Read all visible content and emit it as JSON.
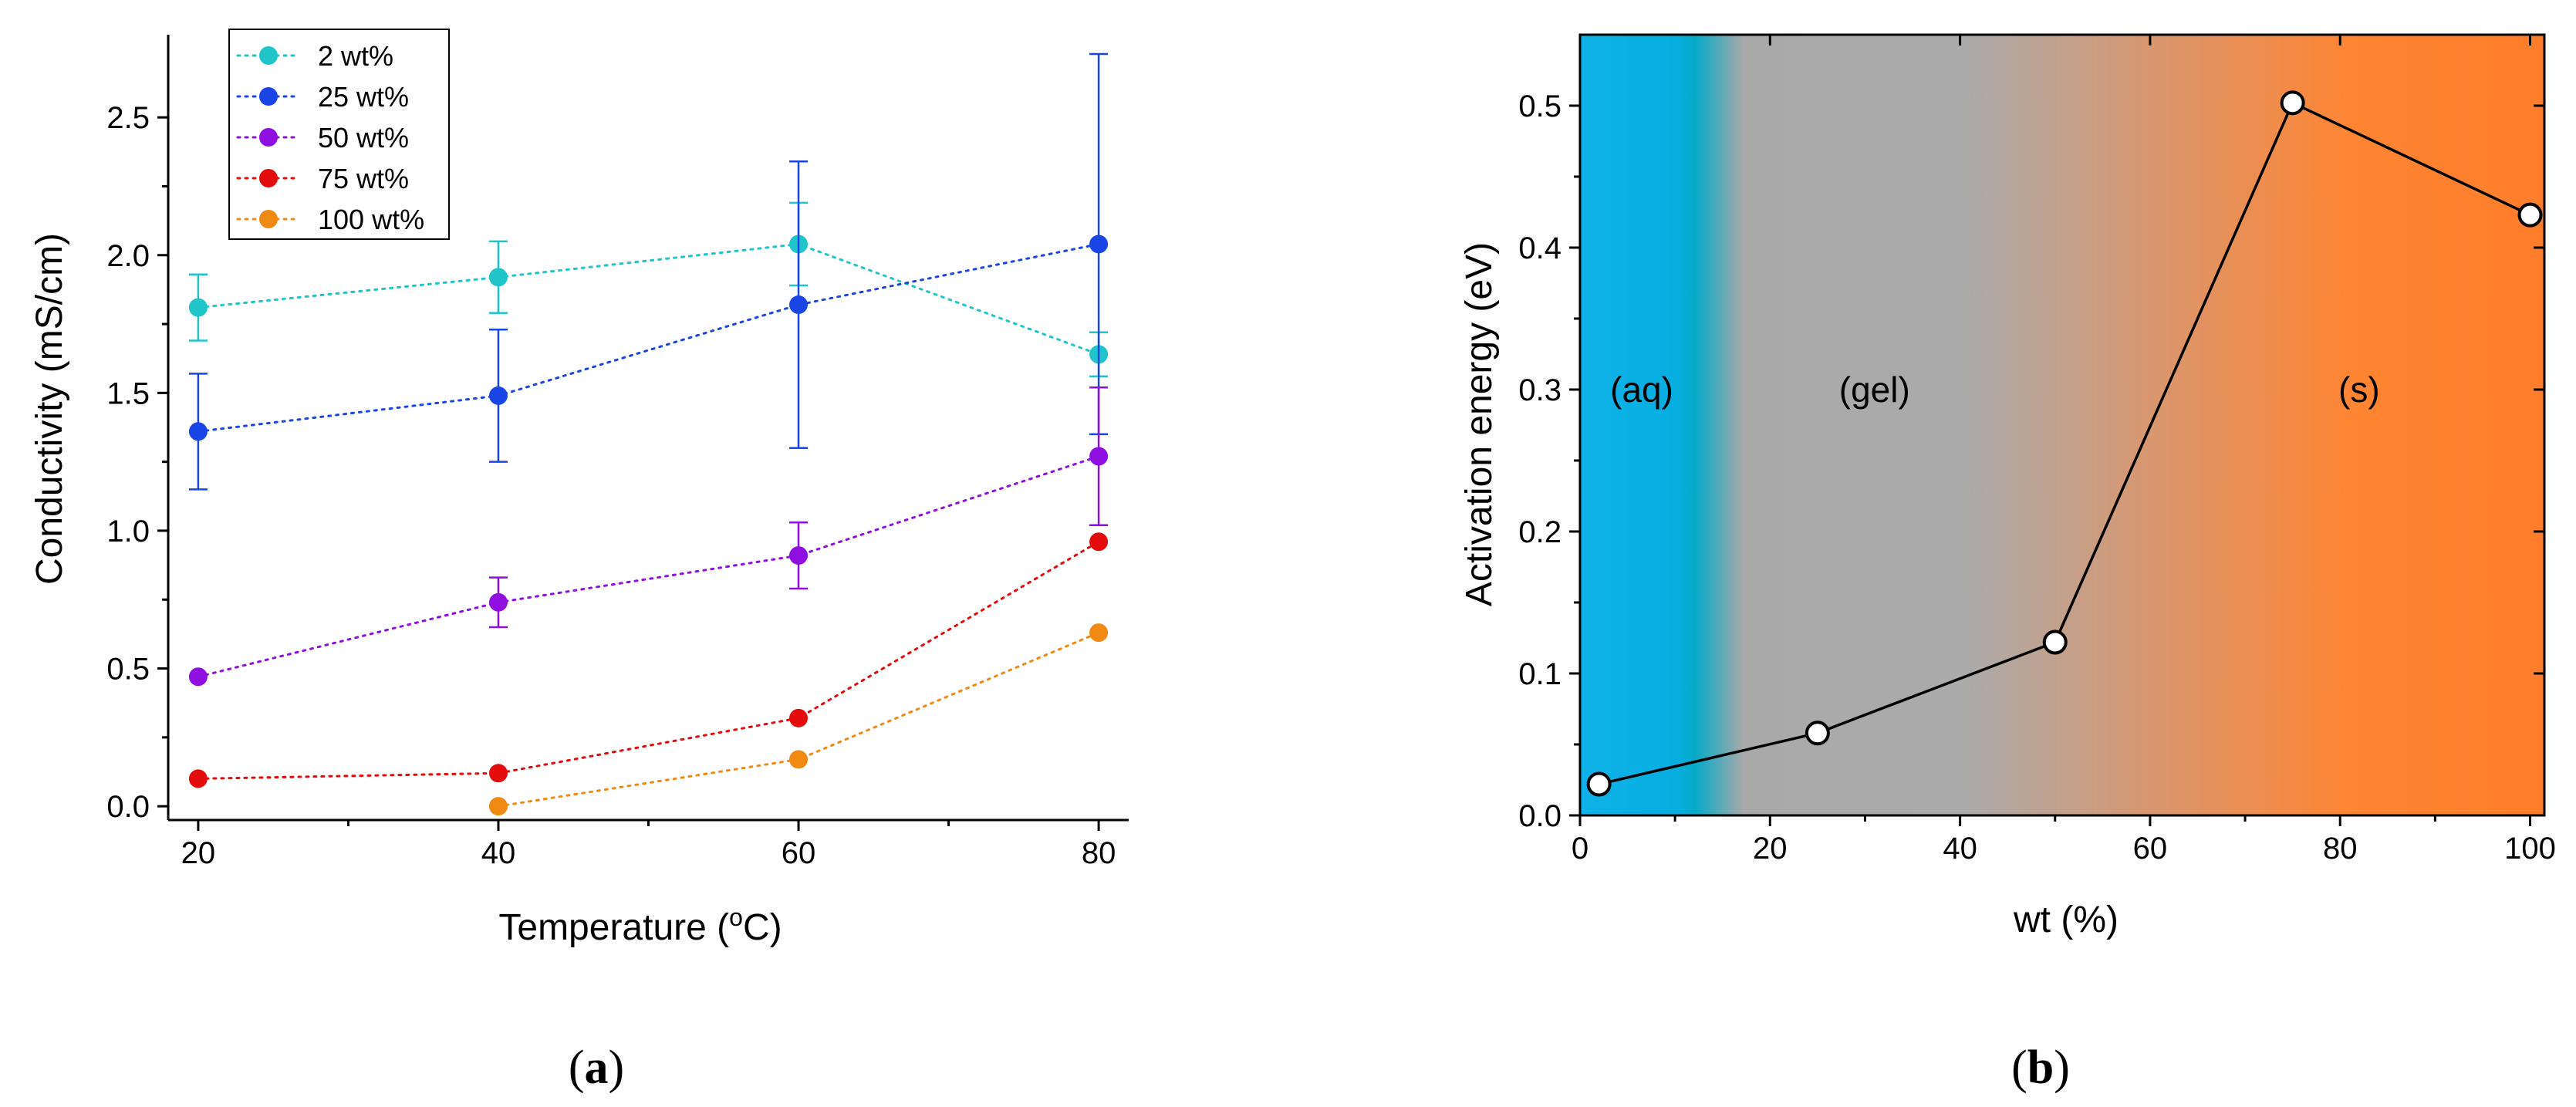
{
  "chart_data": [
    {
      "panel": "a",
      "type": "line",
      "xlabel": "Temperature (",
      "xlabel_sup": "o",
      "xlabel_end": "C)",
      "ylabel": "Conductivity (mS/cm)",
      "xlim": [
        18,
        82
      ],
      "ylim": [
        -0.05,
        2.8
      ],
      "xticks": [
        20,
        40,
        60,
        80
      ],
      "xtick_labels": [
        "20",
        "40",
        "60",
        "80"
      ],
      "yticks": [
        0.0,
        0.5,
        1.0,
        1.5,
        2.0,
        2.5
      ],
      "ytick_labels": [
        "0.0",
        "0.5",
        "1.0",
        "1.5",
        "2.0",
        "2.5"
      ],
      "legend_position": "top-left",
      "series": [
        {
          "name": "2 wt%",
          "color": "#1fc5c8",
          "x": [
            20,
            40,
            60,
            80
          ],
          "y": [
            1.81,
            1.92,
            2.04,
            1.64
          ],
          "err": [
            0.12,
            0.13,
            0.15,
            0.08
          ]
        },
        {
          "name": "25 wt%",
          "color": "#1a45e6",
          "x": [
            20,
            40,
            60,
            80
          ],
          "y": [
            1.36,
            1.49,
            1.82,
            2.04
          ],
          "err": [
            0.21,
            0.24,
            0.52,
            0.69
          ]
        },
        {
          "name": "50 wt%",
          "color": "#8e0fe0",
          "x": [
            20,
            40,
            60,
            80
          ],
          "y": [
            0.47,
            0.74,
            0.91,
            1.27
          ],
          "err": [
            0.0,
            0.09,
            0.12,
            0.25
          ]
        },
        {
          "name": "75 wt%",
          "color": "#e30b0b",
          "x": [
            20,
            40,
            60,
            80
          ],
          "y": [
            0.1,
            0.12,
            0.32,
            0.96
          ],
          "err": [
            0.0,
            0.0,
            0.0,
            0.0
          ]
        },
        {
          "name": "100 wt%",
          "color": "#f08a13",
          "x": [
            40,
            60,
            80
          ],
          "y": [
            0.0,
            0.17,
            0.63
          ],
          "err": [
            0.0,
            0.0,
            0.0
          ]
        }
      ],
      "caption": "a"
    },
    {
      "panel": "b",
      "type": "line",
      "xlabel": "wt (%)",
      "ylabel": "Activation energy (eV)",
      "xlim": [
        0,
        101.5
      ],
      "ylim": [
        0,
        0.55
      ],
      "xticks": [
        0,
        20,
        40,
        60,
        80,
        100
      ],
      "xtick_labels": [
        "0",
        "20",
        "40",
        "60",
        "80",
        "100"
      ],
      "yticks": [
        0.0,
        0.1,
        0.2,
        0.3,
        0.4,
        0.5
      ],
      "ytick_labels": [
        "0.0",
        "0.1",
        "0.2",
        "0.3",
        "0.4",
        "0.5"
      ],
      "series": [
        {
          "name": "Activation energy",
          "color": "#000000",
          "x": [
            2,
            25,
            50,
            75,
            100
          ],
          "y": [
            0.022,
            0.058,
            0.122,
            0.502,
            0.423
          ]
        }
      ],
      "regions": [
        {
          "label": "(aq)",
          "x": 6.5,
          "y": 0.3,
          "color": "#0fb2e8"
        },
        {
          "label": "(gel)",
          "x": 31,
          "y": 0.3,
          "color": "#a9a9a9"
        },
        {
          "label": "(s)",
          "x": 82,
          "y": 0.3,
          "color": "#ff8533"
        }
      ],
      "caption": "b"
    }
  ]
}
